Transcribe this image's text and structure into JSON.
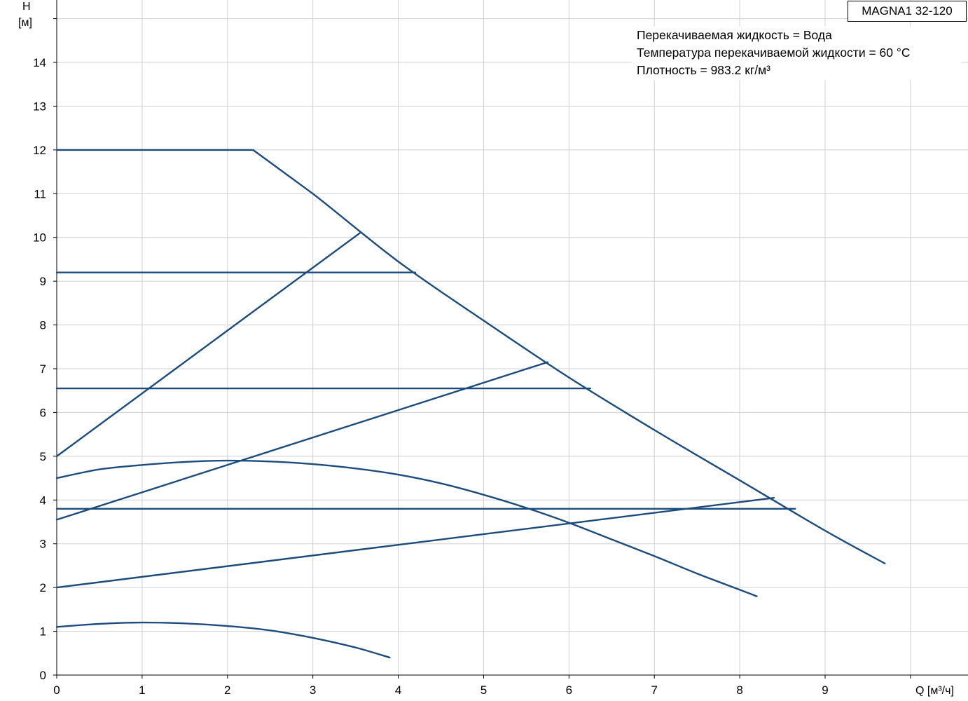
{
  "chart_data": {
    "type": "line",
    "title": "MAGNA1 32-120",
    "xlabel": "Q [м³/ч]",
    "ylabel_line1": "H",
    "ylabel_line2": "[м]",
    "xlim": [
      0,
      10
    ],
    "ylim": [
      0,
      15
    ],
    "grid": true,
    "x_ticks": [
      0,
      1,
      2,
      3,
      4,
      5,
      6,
      7,
      8,
      9
    ],
    "y_ticks": [
      0,
      1,
      2,
      3,
      4,
      5,
      6,
      7,
      8,
      9,
      10,
      11,
      12,
      13,
      14
    ],
    "annotations": [
      "Перекачиваемая жидкость = Вода",
      "Температура перекачиваемой жидкости = 60 °C",
      "Плотность = 983.2 кг/м³"
    ],
    "series": [
      {
        "x": [
          0,
          2.3,
          3.0,
          4.0,
          5.0,
          6.0,
          7.0,
          8.0,
          9.0,
          9.7
        ],
        "y": [
          12.0,
          12.0,
          11.0,
          9.45,
          8.1,
          6.8,
          5.6,
          4.45,
          3.3,
          2.55
        ]
      },
      {
        "x": [
          0,
          3.55
        ],
        "y": [
          5.0,
          10.1
        ]
      },
      {
        "x": [
          0,
          4.2
        ],
        "y": [
          9.2,
          9.2
        ]
      },
      {
        "x": [
          0,
          5.75
        ],
        "y": [
          3.55,
          7.15
        ]
      },
      {
        "x": [
          0,
          6.25
        ],
        "y": [
          6.55,
          6.55
        ]
      },
      {
        "x": [
          0,
          8.4
        ],
        "y": [
          2.0,
          4.05
        ]
      },
      {
        "x": [
          0,
          8.65
        ],
        "y": [
          3.8,
          3.8
        ]
      },
      {
        "x": [
          0,
          0.5,
          1.0,
          1.5,
          2.0,
          2.5,
          3.0,
          3.5,
          4.0,
          4.5,
          5.0,
          5.5,
          6.0,
          6.5,
          7.0,
          7.5,
          8.0,
          8.2
        ],
        "y": [
          4.5,
          4.7,
          4.8,
          4.87,
          4.9,
          4.88,
          4.82,
          4.72,
          4.58,
          4.38,
          4.12,
          3.82,
          3.48,
          3.1,
          2.72,
          2.32,
          1.95,
          1.8
        ]
      },
      {
        "x": [
          0,
          0.5,
          1.0,
          1.5,
          2.0,
          2.5,
          3.0,
          3.5,
          3.9
        ],
        "y": [
          1.1,
          1.17,
          1.2,
          1.18,
          1.12,
          1.02,
          0.85,
          0.63,
          0.4
        ]
      }
    ]
  }
}
